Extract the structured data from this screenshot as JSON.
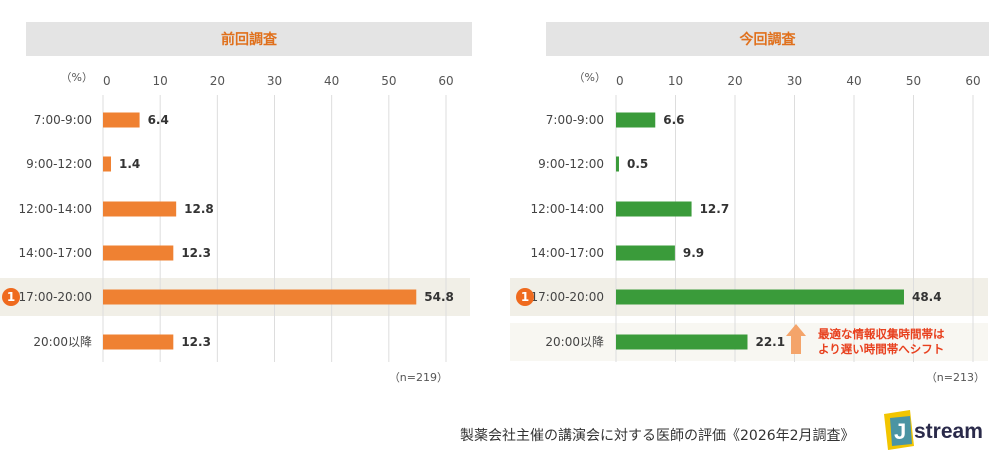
{
  "chart_data": [
    {
      "type": "bar",
      "orientation": "horizontal",
      "title": "前回調査",
      "unit_label": "（%）",
      "categories": [
        "7:00-9:00",
        "9:00-12:00",
        "12:00-14:00",
        "14:00-17:00",
        "17:00-20:00",
        "20:00以降"
      ],
      "values": [
        6.4,
        1.4,
        12.8,
        12.3,
        54.8,
        12.3
      ],
      "value_labels": [
        "6.4",
        "1.4",
        "12.8",
        "12.3",
        "54.8",
        "12.3"
      ],
      "xlim": [
        0,
        60
      ],
      "ticks": [
        "0",
        "10",
        "20",
        "30",
        "40",
        "50",
        "60"
      ],
      "bar_color": "#ef8132",
      "highlight_index": 4,
      "highlight_badge": "1",
      "sample_note": "（n=219）",
      "grid": true
    },
    {
      "type": "bar",
      "orientation": "horizontal",
      "title": "今回調査",
      "unit_label": "（%）",
      "categories": [
        "7:00-9:00",
        "9:00-12:00",
        "12:00-14:00",
        "14:00-17:00",
        "17:00-20:00",
        "20:00以降"
      ],
      "values": [
        6.6,
        0.5,
        12.7,
        9.9,
        48.4,
        22.1
      ],
      "value_labels": [
        "6.6",
        "0.5",
        "12.7",
        "9.9",
        "48.4",
        "22.1"
      ],
      "xlim": [
        0,
        60
      ],
      "ticks": [
        "0",
        "10",
        "20",
        "30",
        "40",
        "50",
        "60"
      ],
      "bar_color": "#3a9b3a",
      "highlight_index": 4,
      "highlight_badge": "1",
      "sample_note": "（n=213）",
      "annotation": [
        "最適な情報収集時間帯は",
        "より遅い時間帯へシフト"
      ],
      "annotation_color": "#e8401e",
      "grid": true
    }
  ],
  "title_color": "#e0701c",
  "header_bg": "#e4e4e4",
  "footnote": "製薬会社主催の講演会に対する医師の評価《2026年2月調査》",
  "logo_text": "stream",
  "logo_letter": "J"
}
